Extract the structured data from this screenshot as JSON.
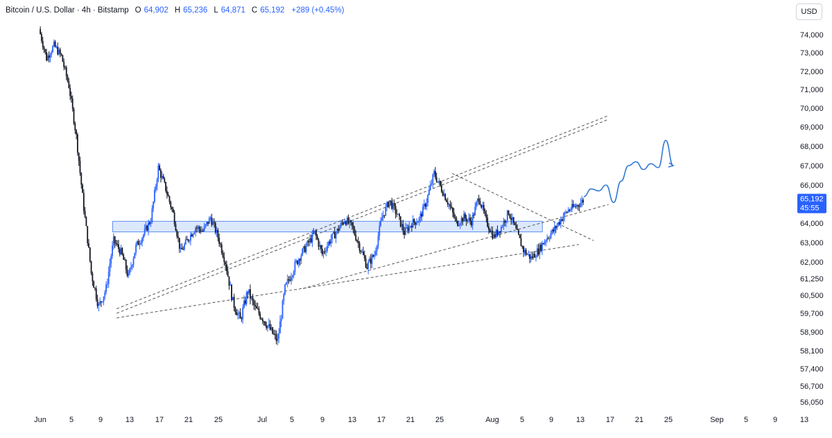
{
  "header": {
    "symbol": "Bitcoin / U.S. Dollar · 4h · Bitstamp",
    "open_label": "O",
    "open": "64,902",
    "high_label": "H",
    "high": "65,236",
    "low_label": "L",
    "low": "64,871",
    "close_label": "C",
    "close": "65,192",
    "change": "+289 (+0.45%)"
  },
  "currency_button": "USD",
  "last_price_tag": {
    "price": "65,192",
    "countdown": "45:55"
  },
  "colors": {
    "up": "#2962ff",
    "down": "#131722",
    "zone_fill": "#d6e4fb",
    "zone_stroke": "#5b8def",
    "projection": "#3479d6",
    "trendline": "#555555"
  },
  "chart_data": {
    "type": "candlestick",
    "title": "Bitcoin / U.S. Dollar · 4h · Bitstamp",
    "price_axis_labels": [
      "74,000",
      "73,000",
      "72,000",
      "71,000",
      "70,000",
      "69,000",
      "68,000",
      "67,000",
      "66,000",
      "65,000",
      "64,000",
      "63,000",
      "62,000",
      "61,250",
      "60,500",
      "59,700",
      "58,900",
      "58,100",
      "57,400",
      "56,700",
      "56,050"
    ],
    "date_axis_labels": [
      "Jun",
      "5",
      "9",
      "13",
      "17",
      "21",
      "25",
      "Jul",
      "5",
      "9",
      "13",
      "17",
      "21",
      "25",
      "Aug",
      "5",
      "9",
      "13",
      "17",
      "21",
      "25",
      "Sep",
      "5",
      "9",
      "13"
    ],
    "price_swings": [
      {
        "date": "May 31",
        "price": 74300
      },
      {
        "date": "Jun 1",
        "price": 72700
      },
      {
        "date": "Jun 2",
        "price": 73400
      },
      {
        "date": "Jun 3",
        "price": 72800
      },
      {
        "date": "Jun 4",
        "price": 71200
      },
      {
        "date": "Jun 5",
        "price": 68500
      },
      {
        "date": "Jun 6",
        "price": 64800
      },
      {
        "date": "Jun 7",
        "price": 61500
      },
      {
        "date": "Jun 8",
        "price": 60000
      },
      {
        "date": "Jun 9",
        "price": 60800
      },
      {
        "date": "Jun 10",
        "price": 63100
      },
      {
        "date": "Jun 11",
        "price": 62500
      },
      {
        "date": "Jun 12",
        "price": 61300
      },
      {
        "date": "Jun 13",
        "price": 62800
      },
      {
        "date": "Jun 14",
        "price": 63400
      },
      {
        "date": "Jun 15",
        "price": 64200
      },
      {
        "date": "Jun 16",
        "price": 66900
      },
      {
        "date": "Jun 17",
        "price": 65800
      },
      {
        "date": "Jun 18",
        "price": 64500
      },
      {
        "date": "Jun 19",
        "price": 62500
      },
      {
        "date": "Jun 20",
        "price": 63200
      },
      {
        "date": "Jun 21",
        "price": 63800
      },
      {
        "date": "Jun 22",
        "price": 63600
      },
      {
        "date": "Jun 23",
        "price": 64300
      },
      {
        "date": "Jun 24",
        "price": 63300
      },
      {
        "date": "Jun 25",
        "price": 62000
      },
      {
        "date": "Jun 26",
        "price": 60200
      },
      {
        "date": "Jun 27",
        "price": 59400
      },
      {
        "date": "Jun 28",
        "price": 60700
      },
      {
        "date": "Jun 29",
        "price": 59900
      },
      {
        "date": "Jun 30",
        "price": 59500
      },
      {
        "date": "Jul 1",
        "price": 59000
      },
      {
        "date": "Jul 2",
        "price": 58500
      },
      {
        "date": "Jul 3",
        "price": 60800
      },
      {
        "date": "Jul 4",
        "price": 61600
      },
      {
        "date": "Jul 5",
        "price": 62300
      },
      {
        "date": "Jul 6",
        "price": 62900
      },
      {
        "date": "Jul 7",
        "price": 63500
      },
      {
        "date": "Jul 8",
        "price": 62400
      },
      {
        "date": "Jul 9",
        "price": 63100
      },
      {
        "date": "Jul 10",
        "price": 63600
      },
      {
        "date": "Jul 11",
        "price": 64200
      },
      {
        "date": "Jul 12",
        "price": 63800
      },
      {
        "date": "Jul 13",
        "price": 62800
      },
      {
        "date": "Jul 14",
        "price": 61800
      },
      {
        "date": "Jul 15",
        "price": 62400
      },
      {
        "date": "Jul 16",
        "price": 64300
      },
      {
        "date": "Jul 17",
        "price": 65200
      },
      {
        "date": "Jul 18",
        "price": 64500
      },
      {
        "date": "Jul 19",
        "price": 63500
      },
      {
        "date": "Jul 20",
        "price": 64000
      },
      {
        "date": "Jul 21",
        "price": 64200
      },
      {
        "date": "Jul 22",
        "price": 65200
      },
      {
        "date": "Jul 23",
        "price": 66600
      },
      {
        "date": "Jul 24",
        "price": 65800
      },
      {
        "date": "Jul 25",
        "price": 65000
      },
      {
        "date": "Jul 26",
        "price": 64000
      },
      {
        "date": "Jul 27",
        "price": 64300
      },
      {
        "date": "Jul 28",
        "price": 64100
      },
      {
        "date": "Jul 29",
        "price": 65400
      },
      {
        "date": "Jul 30",
        "price": 64100
      },
      {
        "date": "Jul 31",
        "price": 63300
      },
      {
        "date": "Aug 1",
        "price": 63800
      },
      {
        "date": "Aug 2",
        "price": 64600
      },
      {
        "date": "Aug 3",
        "price": 63600
      },
      {
        "date": "Aug 4",
        "price": 62600
      },
      {
        "date": "Aug 5",
        "price": 62200
      },
      {
        "date": "Aug 6",
        "price": 62600
      },
      {
        "date": "Aug 7",
        "price": 63200
      },
      {
        "date": "Aug 8",
        "price": 63600
      },
      {
        "date": "Aug 9",
        "price": 64200
      },
      {
        "date": "Aug 10",
        "price": 64700
      },
      {
        "date": "Aug 11",
        "price": 64900
      },
      {
        "date": "Aug 12",
        "price": 65200
      }
    ],
    "support_zone": {
      "top": 64100,
      "bottom": 63550,
      "from": "Jun 7",
      "to": "Aug 7"
    },
    "channel_lines": [
      {
        "from": {
          "date": "Jun 8",
          "price": 59900
        },
        "to": {
          "date": "Aug 13",
          "price": 69600
        }
      },
      {
        "from": {
          "date": "Jun 8",
          "price": 59700
        },
        "to": {
          "date": "Aug 13",
          "price": 69400
        }
      },
      {
        "from": {
          "date": "Jun 8",
          "price": 59500
        },
        "to": {
          "date": "Aug 9",
          "price": 62900
        }
      },
      {
        "from": {
          "date": "Jul 3",
          "price": 60800
        },
        "to": {
          "date": "Aug 13",
          "price": 65000
        }
      },
      {
        "from": {
          "date": "Jul 23",
          "price": 66600
        },
        "to": {
          "date": "Aug 11",
          "price": 63100
        }
      }
    ],
    "projection_path": [
      {
        "date": "Aug 12",
        "price": 65400
      },
      {
        "date": "Aug 13",
        "price": 65800
      },
      {
        "date": "Aug 14",
        "price": 65700
      },
      {
        "date": "Aug 15",
        "price": 66000
      },
      {
        "date": "Aug 16",
        "price": 65100
      },
      {
        "date": "Aug 17",
        "price": 66200
      },
      {
        "date": "Aug 18",
        "price": 67000
      },
      {
        "date": "Aug 19",
        "price": 67200
      },
      {
        "date": "Aug 20",
        "price": 66800
      },
      {
        "date": "Aug 21",
        "price": 67100
      },
      {
        "date": "Aug 22",
        "price": 66900
      },
      {
        "date": "Aug 23",
        "price": 68300
      },
      {
        "date": "Aug 24",
        "price": 67000
      }
    ]
  }
}
